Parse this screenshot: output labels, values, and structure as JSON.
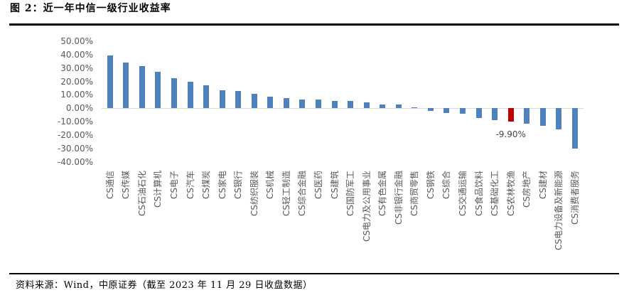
{
  "figure": {
    "title": "图 2：近一年中信一级行业收益率",
    "source": "资料来源：Wind，中原证券（截至 2023 年 11 月 29 日收盘数据）"
  },
  "chart_data": {
    "type": "bar",
    "title": "近一年中信一级行业收益率",
    "categories": [
      "CS通信",
      "CS传媒",
      "CS石油石化",
      "CS计算机",
      "CS电子",
      "CS汽车",
      "CS煤炭",
      "CS家电",
      "CS银行",
      "CS纺织服装",
      "CS机械",
      "CS轻工制造",
      "CS综合金融",
      "CS医药",
      "CS建筑",
      "CS国防军工",
      "CS电力及公用事业",
      "CS有色金属",
      "CS非银行金融",
      "CS商贸零售",
      "CS钢铁",
      "CS综合",
      "CS交通运输",
      "CS食品饮料",
      "CS基础化工",
      "CS农林牧渔",
      "CS房地产",
      "CS建材",
      "CS电力设备及新能源",
      "CS消费者服务"
    ],
    "values": [
      39.2,
      33.9,
      31.2,
      27.1,
      22.4,
      19.7,
      17.1,
      13.2,
      12.9,
      10.6,
      8.6,
      7.7,
      6.5,
      6.3,
      5.4,
      5.3,
      4.6,
      2.8,
      2.6,
      0.2,
      -1.7,
      -3.3,
      -4.3,
      -7.1,
      -8.8,
      -9.9,
      -11.5,
      -13.2,
      -15.9,
      -30.0
    ],
    "unit": "%",
    "xlabel": "",
    "ylabel": "",
    "ylim": [
      -40,
      50
    ],
    "y_ticks": [
      "50.00%",
      "40.00%",
      "30.00%",
      "20.00%",
      "10.00%",
      "0.00%",
      "-10.00%",
      "-20.00%",
      "-30.00%",
      "-40.00%"
    ],
    "grid": false,
    "legend": false,
    "bar_color": "#4f81bd",
    "highlight_color": "#c00000",
    "highlight_index": 25,
    "data_label": {
      "text": "-9.90%",
      "category": "CS农林牧渔",
      "value": -9.9
    }
  }
}
